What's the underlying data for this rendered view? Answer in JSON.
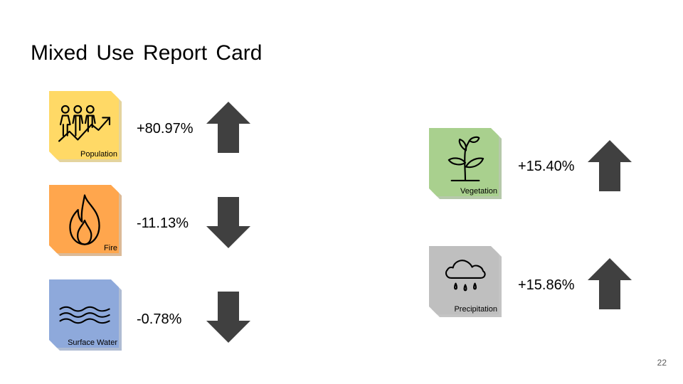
{
  "title": "Mixed Use Report Card",
  "page_number": "22",
  "metrics": [
    {
      "label": "Population",
      "value": "+80.97%",
      "direction": "up",
      "color": "#FFD966",
      "icon": "population-icon"
    },
    {
      "label": "Fire",
      "value": "-11.13%",
      "direction": "down",
      "color": "#FFA64D",
      "icon": "fire-icon"
    },
    {
      "label": "Surface Water",
      "value": "-0.78%",
      "direction": "down",
      "color": "#8EA9DB",
      "icon": "waves-icon"
    },
    {
      "label": "Vegetation",
      "value": "+15.40%",
      "direction": "up",
      "color": "#A9D08E",
      "icon": "plant-icon"
    },
    {
      "label": "Precipitation",
      "value": "+15.86%",
      "direction": "up",
      "color": "#BFBFBF",
      "icon": "rain-cloud-icon"
    }
  ],
  "arrow_color": "#404040"
}
